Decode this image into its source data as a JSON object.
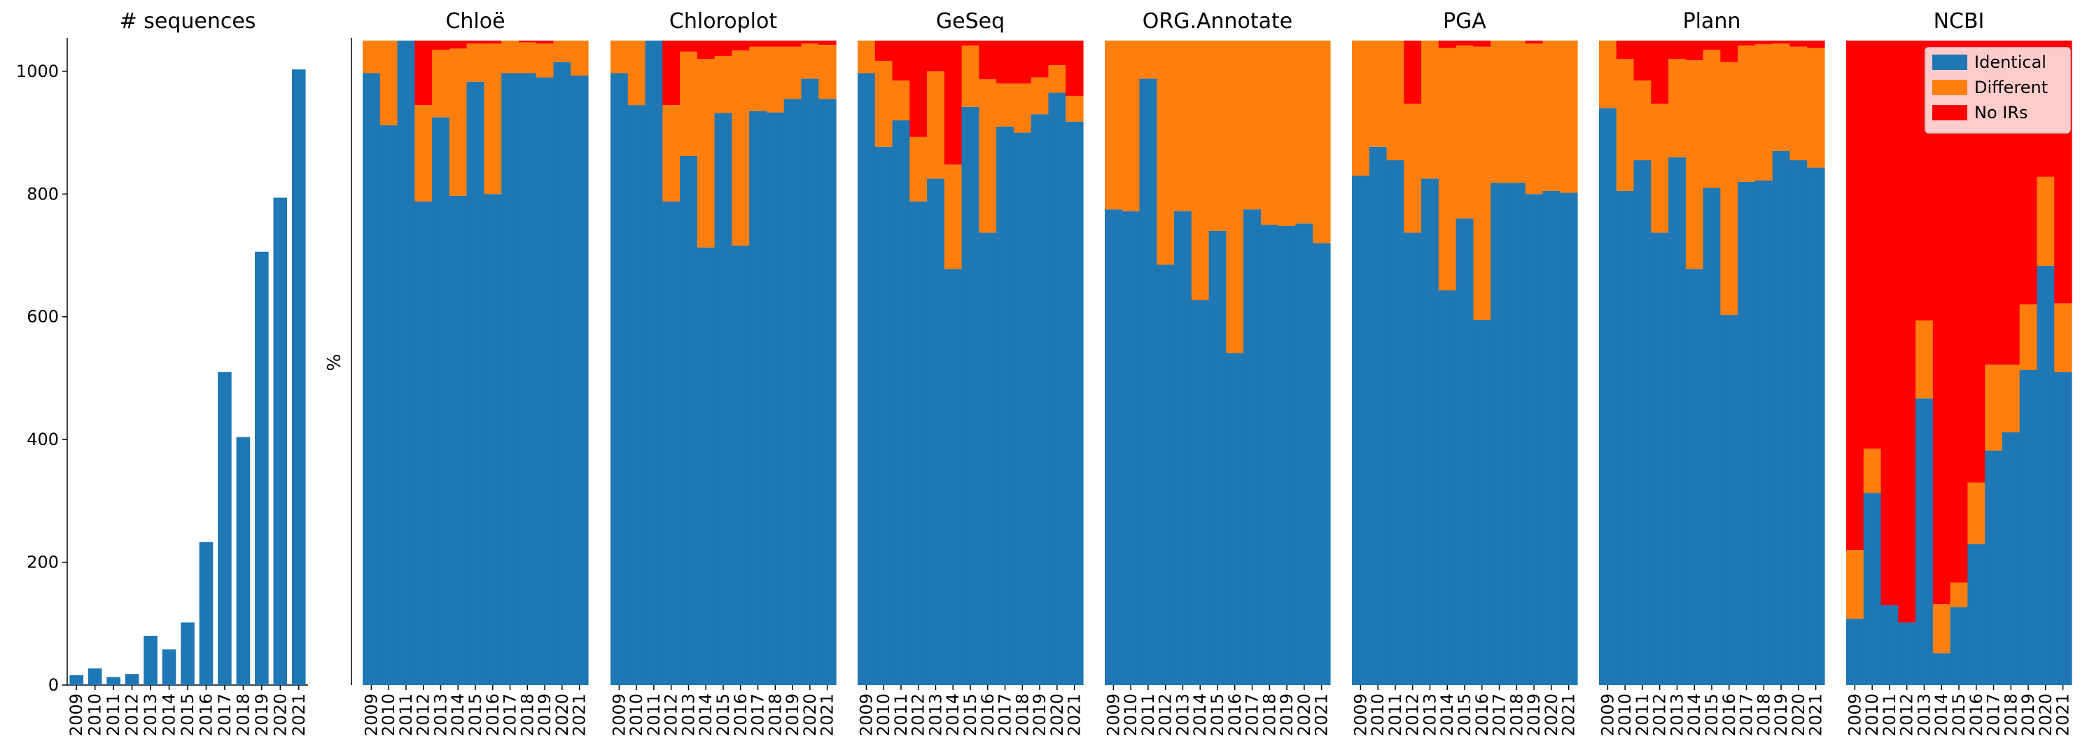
{
  "colors": {
    "identical": "#1f77b4",
    "different": "#ff7f0e",
    "no_irs": "#ff0000",
    "axis": "#000000"
  },
  "chart_data": [
    {
      "type": "bar",
      "title": "# sequences",
      "xlabel": "",
      "ylabel": "",
      "ylim": [
        0,
        1050
      ],
      "yticks": [
        "0",
        "200",
        "400",
        "600",
        "800",
        "1000"
      ],
      "categories": [
        "2009",
        "2010",
        "2011",
        "2012",
        "2013",
        "2014",
        "2015",
        "2016",
        "2017",
        "2018",
        "2019",
        "2020",
        "2021"
      ],
      "values": [
        16,
        27,
        13,
        18,
        80,
        58,
        102,
        233,
        510,
        404,
        706,
        794,
        1003
      ]
    },
    {
      "type": "bar",
      "stacked": true,
      "ylabel": "%",
      "ylim": [
        0,
        1050
      ],
      "categories": [
        "2009",
        "2010",
        "2011",
        "2012",
        "2013",
        "2014",
        "2015",
        "2016",
        "2017",
        "2018",
        "2019",
        "2020",
        "2021"
      ],
      "legend": {
        "position": "top-right",
        "entries": [
          "Identical",
          "Different",
          "No IRs"
        ]
      },
      "panels": [
        {
          "title": "Chloë",
          "identical": [
            997,
            912,
            1050,
            788,
            925,
            797,
            983,
            800,
            997,
            997,
            990,
            1015,
            993
          ],
          "different": [
            53,
            138,
            0,
            157,
            110,
            240,
            62,
            245,
            53,
            50,
            55,
            35,
            57
          ],
          "no_irs": [
            0,
            0,
            0,
            105,
            15,
            13,
            5,
            5,
            0,
            3,
            5,
            0,
            0
          ]
        },
        {
          "title": "Chloroplot",
          "identical": [
            997,
            945,
            1050,
            788,
            862,
            713,
            932,
            716,
            935,
            933,
            955,
            988,
            955
          ],
          "different": [
            53,
            105,
            0,
            157,
            170,
            307,
            93,
            318,
            105,
            107,
            85,
            57,
            88
          ],
          "no_irs": [
            0,
            0,
            0,
            105,
            18,
            30,
            25,
            16,
            10,
            10,
            10,
            5,
            7
          ]
        },
        {
          "title": "GeSeq",
          "identical": [
            997,
            877,
            920,
            788,
            825,
            678,
            942,
            737,
            910,
            900,
            930,
            965,
            918
          ],
          "different": [
            53,
            140,
            65,
            105,
            175,
            170,
            100,
            250,
            70,
            80,
            60,
            45,
            42
          ],
          "no_irs": [
            0,
            33,
            65,
            157,
            50,
            202,
            8,
            63,
            70,
            70,
            60,
            40,
            90
          ]
        },
        {
          "title": "ORG.Annotate",
          "identical": [
            775,
            772,
            988,
            685,
            772,
            627,
            740,
            541,
            775,
            750,
            748,
            752,
            720
          ],
          "different": [
            275,
            278,
            62,
            365,
            278,
            423,
            310,
            509,
            275,
            300,
            302,
            298,
            330
          ],
          "no_irs": [
            0,
            0,
            0,
            0,
            0,
            0,
            0,
            0,
            0,
            0,
            0,
            0,
            0
          ]
        },
        {
          "title": "PGA",
          "identical": [
            830,
            877,
            855,
            737,
            825,
            643,
            760,
            595,
            818,
            818,
            800,
            805,
            802
          ],
          "different": [
            220,
            173,
            195,
            210,
            225,
            395,
            282,
            445,
            232,
            232,
            245,
            245,
            248
          ],
          "no_irs": [
            0,
            0,
            0,
            103,
            0,
            12,
            8,
            10,
            0,
            0,
            5,
            0,
            0
          ]
        },
        {
          "title": "Plann",
          "identical": [
            940,
            805,
            855,
            737,
            860,
            678,
            810,
            603,
            820,
            822,
            870,
            855,
            843
          ],
          "different": [
            110,
            215,
            130,
            210,
            160,
            340,
            225,
            412,
            222,
            222,
            175,
            185,
            195
          ],
          "no_irs": [
            0,
            30,
            65,
            103,
            30,
            32,
            15,
            35,
            8,
            6,
            5,
            10,
            12
          ]
        },
        {
          "title": "NCBI",
          "identical": [
            108,
            313,
            130,
            102,
            467,
            52,
            127,
            230,
            382,
            412,
            513,
            683,
            510
          ],
          "different": [
            112,
            72,
            0,
            0,
            127,
            80,
            40,
            100,
            140,
            110,
            107,
            145,
            112
          ],
          "no_irs": [
            830,
            665,
            920,
            948,
            456,
            918,
            883,
            720,
            528,
            528,
            430,
            222,
            428
          ]
        }
      ]
    }
  ]
}
